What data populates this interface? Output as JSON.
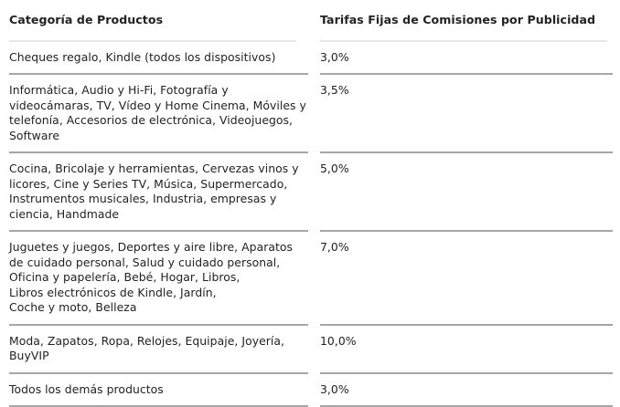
{
  "table": {
    "headers": {
      "category": "Categoría de Productos",
      "rate": "Tarifas Fijas de Comisiones por Publicidad"
    },
    "rows": [
      {
        "category_lines": [
          "Cheques regalo, Kindle (todos los dispositivos)"
        ],
        "rate": "3,0%"
      },
      {
        "category_lines": [
          "Informática, Audio y Hi-Fi, Fotografía y",
          "videocámaras, TV, Vídeo y Home Cinema, Móviles y",
          "telefonía, Accesorios de electrónica, Videojuegos,",
          "Software"
        ],
        "rate": "3,5%"
      },
      {
        "category_lines": [
          "Cocina, Bricolaje y herramientas, Cervezas vinos y",
          "licores, Cine y Series TV, Música, Supermercado,",
          "Instrumentos musicales, Industria, empresas y",
          "ciencia, Handmade"
        ],
        "rate": "5,0%"
      },
      {
        "category_lines": [
          "Juguetes y juegos, Deportes y aire libre, Aparatos",
          "de cuidado personal, Salud y cuidado personal,",
          "Oficina y papelería, Bebé, Hogar, Libros,",
          "Libros electrónicos de Kindle, Jardín,",
          "Coche y moto, Belleza"
        ],
        "rate": "7,0%"
      },
      {
        "category_lines": [
          "Moda, Zapatos, Ropa, Relojes, Equipaje, Joyería,",
          "BuyVIP"
        ],
        "rate": "10,0%"
      },
      {
        "category_lines": [
          "Todos los demás productos"
        ],
        "rate": "3,0%"
      }
    ]
  }
}
